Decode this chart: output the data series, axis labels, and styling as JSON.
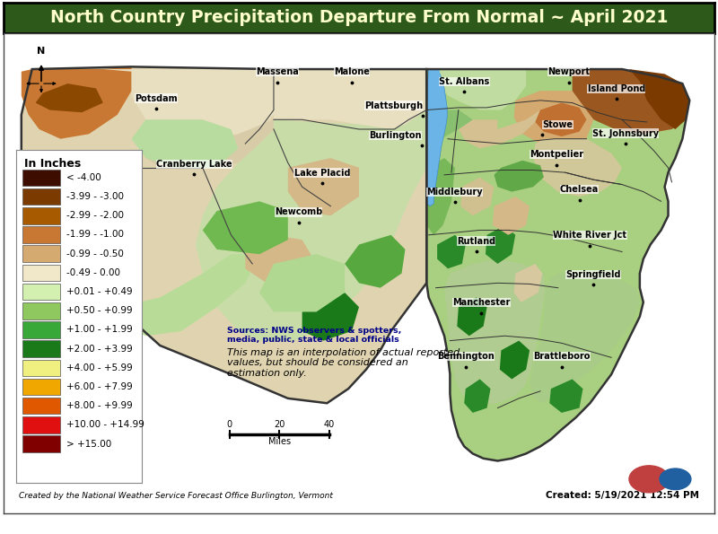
{
  "title": "North Country Precipitation Departure From Normal ~ April 2021",
  "title_bg_color": "#2d5a1b",
  "title_text_color": "#ffffcc",
  "fig_bg_color": "#ffffff",
  "legend_title": "In Inches",
  "legend_items": [
    {
      "label": "< -4.00",
      "color": "#3d0d00"
    },
    {
      "label": "-3.99 - -3.00",
      "color": "#7a3a00"
    },
    {
      "label": "-2.99 - -2.00",
      "color": "#a85a00"
    },
    {
      "label": "-1.99 - -1.00",
      "color": "#c87832"
    },
    {
      "label": "-0.99 - -0.50",
      "color": "#d4aa70"
    },
    {
      "label": "-0.49 - 0.00",
      "color": "#f0e8c8"
    },
    {
      "label": "+0.01 - +0.49",
      "color": "#d4f0b0"
    },
    {
      "label": "+0.50 - +0.99",
      "color": "#90c860"
    },
    {
      "label": "+1.00 - +1.99",
      "color": "#38a838"
    },
    {
      "label": "+2.00 - +3.99",
      "color": "#1a7a1a"
    },
    {
      "label": "+4.00 - +5.99",
      "color": "#f0f080"
    },
    {
      "label": "+6.00 - +7.99",
      "color": "#f0a800"
    },
    {
      "label": "+8.00 - +9.99",
      "color": "#e05800"
    },
    {
      "label": "+10.00 - +14.99",
      "color": "#e01010"
    },
    {
      "label": "> +15.00",
      "color": "#800000"
    }
  ],
  "sources_text": "Sources: NWS observers & spotters,\nmedia, public, state & local officials",
  "note_text": "This map is an interpolation of actual reported\nvalues, but should be considered an\nestimation only.",
  "created_text": "Created: 5/19/2021 12:54 PM",
  "footer_text": "Created by the National Weather Service Forecast Office Burlington, Vermont"
}
